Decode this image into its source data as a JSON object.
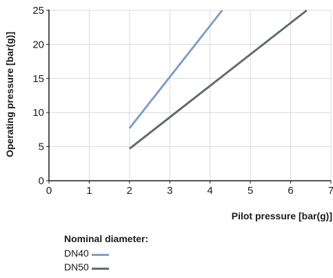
{
  "chart_data": {
    "type": "line",
    "xlabel": "Pilot pressure [bar(g)]",
    "ylabel": "Operating pressure [bar(g)]",
    "xlim": [
      0,
      7
    ],
    "ylim": [
      0,
      25
    ],
    "xticks": [
      0,
      1,
      2,
      3,
      4,
      5,
      6,
      7
    ],
    "yticks": [
      0,
      5,
      10,
      15,
      20,
      25
    ],
    "grid": true,
    "legend": {
      "title": "Nominal diameter:",
      "placement": "bottom"
    },
    "series": [
      {
        "name": "DN40",
        "color": "#7f9ec8",
        "x": [
          2,
          4.3
        ],
        "y": [
          7.7,
          25
        ]
      },
      {
        "name": "DN50",
        "color": "#5f6b72",
        "x": [
          2,
          6.4
        ],
        "y": [
          4.7,
          25
        ]
      }
    ]
  }
}
